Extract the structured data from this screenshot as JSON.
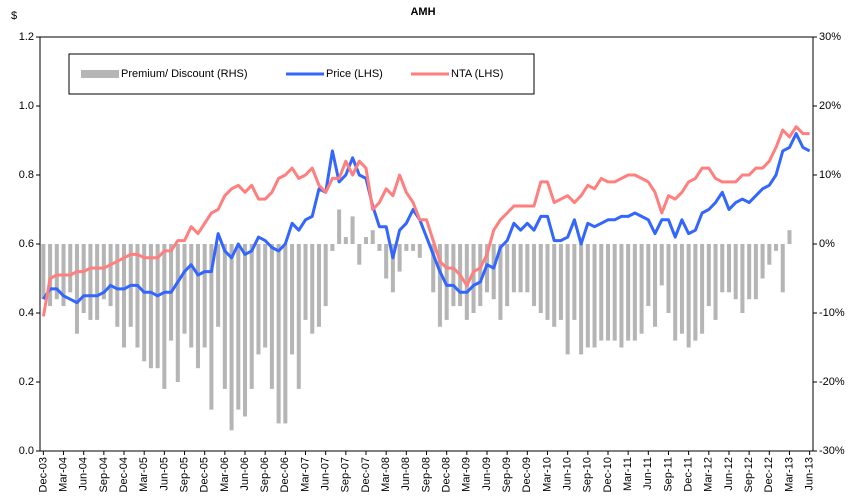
{
  "chart_data": {
    "type": "combo",
    "title": "AMH",
    "y_label": "$",
    "legend": "upper left",
    "grid": false,
    "categories": [
      "Dec-03",
      null,
      null,
      "Mar-04",
      null,
      null,
      "Jun-04",
      null,
      null,
      "Sep-04",
      null,
      null,
      "Dec-04",
      null,
      null,
      "Mar-05",
      null,
      null,
      "Jun-05",
      null,
      null,
      "Sep-05",
      null,
      null,
      "Dec-05",
      null,
      null,
      "Mar-06",
      null,
      null,
      "Jun-06",
      null,
      null,
      "Sep-06",
      null,
      null,
      "Dec-06",
      null,
      null,
      "Mar-07",
      null,
      null,
      "Jun-07",
      null,
      null,
      "Sep-07",
      null,
      null,
      "Dec-07",
      null,
      null,
      "Mar-08",
      null,
      null,
      "Jun-08",
      null,
      null,
      "Sep-08",
      null,
      null,
      "Dec-08",
      null,
      null,
      "Mar-09",
      null,
      null,
      "Jun-09",
      null,
      null,
      "Sep-09",
      null,
      null,
      "Dec-09",
      null,
      null,
      "Mar-10",
      null,
      null,
      "Jun-10",
      null,
      null,
      "Sep-10",
      null,
      null,
      "Dec-10",
      null,
      null,
      "Mar-11",
      null,
      null,
      "Jun-11",
      null,
      null,
      "Sep-11",
      null,
      null,
      "Dec-11",
      null,
      null,
      "Mar-12",
      null,
      null,
      "Jun-12",
      null,
      null,
      "Sep-12",
      null,
      null,
      "Dec-12",
      null,
      null,
      "Mar-13",
      null,
      null,
      "Jun-13"
    ],
    "series": [
      {
        "name": "Premium/ Discount (RHS)",
        "type": "bar",
        "axis": "y2",
        "color": "#b5b5b5",
        "values": [
          -8,
          -9,
          -8,
          -9,
          -7,
          -13,
          -10,
          -11,
          -11,
          -8,
          -9,
          -12,
          -15,
          -12,
          -15,
          -17,
          -18,
          -18,
          -21,
          -14,
          -20,
          -13,
          -15,
          -18,
          -15,
          -24,
          -12,
          -21,
          -27,
          -24,
          -25,
          -21,
          -16,
          -15,
          -21,
          -26,
          -26,
          -16,
          -21,
          -11,
          -13,
          -12,
          -9,
          -1,
          5,
          1,
          4,
          -3,
          1,
          2,
          -1,
          -5,
          -7,
          -4,
          -1,
          -1,
          -2,
          0,
          -7,
          -12,
          -11,
          -9,
          -9,
          -11,
          -10,
          -9,
          -7,
          -8,
          -11,
          -9,
          -7,
          -7,
          -7,
          -9,
          -10,
          -11,
          -12,
          -11,
          -16,
          -11,
          -16,
          -15,
          -15,
          -14,
          -14,
          -14,
          -15,
          -14,
          -14,
          -13,
          -9,
          -12,
          -6,
          -10,
          -14,
          -13,
          -15,
          -14,
          -13,
          -9,
          -11,
          -7,
          -7,
          -8,
          -10,
          -8,
          -8,
          -5,
          -3,
          -1,
          -7,
          2,
          0,
          0,
          0
        ]
      },
      {
        "name": "Price (LHS)",
        "type": "line",
        "color": "#3366ff",
        "values": [
          0.44,
          0.47,
          0.47,
          0.45,
          0.44,
          0.43,
          0.45,
          0.45,
          0.45,
          0.46,
          0.48,
          0.47,
          0.47,
          0.48,
          0.48,
          0.46,
          0.46,
          0.45,
          0.46,
          0.46,
          0.49,
          0.52,
          0.54,
          0.51,
          0.52,
          0.52,
          0.63,
          0.58,
          0.56,
          0.6,
          0.57,
          0.58,
          0.62,
          0.61,
          0.59,
          0.58,
          0.6,
          0.66,
          0.64,
          0.67,
          0.68,
          0.76,
          0.75,
          0.87,
          0.78,
          0.8,
          0.85,
          0.8,
          0.79,
          0.71,
          0.65,
          0.65,
          0.56,
          0.64,
          0.66,
          0.7,
          0.67,
          0.62,
          0.57,
          0.52,
          0.48,
          0.48,
          0.46,
          0.46,
          0.48,
          0.49,
          0.54,
          0.53,
          0.59,
          0.61,
          0.66,
          0.64,
          0.66,
          0.64,
          0.68,
          0.68,
          0.61,
          0.61,
          0.62,
          0.67,
          0.6,
          0.66,
          0.65,
          0.66,
          0.67,
          0.67,
          0.68,
          0.68,
          0.69,
          0.68,
          0.67,
          0.63,
          0.67,
          0.67,
          0.62,
          0.67,
          0.63,
          0.64,
          0.69,
          0.7,
          0.72,
          0.75,
          0.7,
          0.72,
          0.73,
          0.72,
          0.74,
          0.76,
          0.77,
          0.8,
          0.87,
          0.88,
          0.92,
          0.88,
          0.87
        ]
      },
      {
        "name": "NTA (LHS)",
        "type": "line",
        "color": "#ff7f7f",
        "values": [
          0.39,
          0.5,
          0.51,
          0.51,
          0.51,
          0.52,
          0.52,
          0.53,
          0.53,
          0.53,
          0.54,
          0.55,
          0.56,
          0.57,
          0.57,
          0.56,
          0.56,
          0.56,
          0.58,
          0.58,
          0.61,
          0.61,
          0.65,
          0.63,
          0.66,
          0.69,
          0.7,
          0.74,
          0.76,
          0.77,
          0.75,
          0.77,
          0.73,
          0.73,
          0.75,
          0.79,
          0.8,
          0.82,
          0.79,
          0.8,
          0.82,
          0.77,
          0.75,
          0.79,
          0.79,
          0.84,
          0.8,
          0.84,
          0.82,
          0.7,
          0.72,
          0.76,
          0.74,
          0.8,
          0.75,
          0.72,
          0.67,
          0.67,
          0.61,
          0.55,
          0.53,
          0.53,
          0.51,
          0.48,
          0.52,
          0.53,
          0.57,
          0.64,
          0.67,
          0.69,
          0.71,
          0.71,
          0.71,
          0.71,
          0.78,
          0.78,
          0.72,
          0.73,
          0.74,
          0.72,
          0.74,
          0.77,
          0.76,
          0.79,
          0.78,
          0.78,
          0.79,
          0.8,
          0.8,
          0.79,
          0.78,
          0.75,
          0.69,
          0.74,
          0.73,
          0.75,
          0.78,
          0.79,
          0.82,
          0.82,
          0.79,
          0.78,
          0.78,
          0.78,
          0.8,
          0.8,
          0.82,
          0.82,
          0.84,
          0.88,
          0.93,
          0.91,
          0.94,
          0.92,
          0.92
        ]
      }
    ],
    "ylim": [
      0,
      1.2
    ],
    "yticks": [
      {
        "value": 0,
        "label": "0.0"
      },
      0.2,
      0.4,
      0.6,
      0.8,
      {
        "value": 1,
        "label": "1.0"
      },
      1.2
    ],
    "y2lim": [
      -30,
      30
    ],
    "y2ticks": [
      {
        "value": -30,
        "label": "-30%"
      },
      {
        "value": -20,
        "label": "-20%"
      },
      {
        "value": -10,
        "label": "-10%"
      },
      {
        "value": 0,
        "label": "0%"
      },
      {
        "value": 10,
        "label": "10%"
      },
      {
        "value": 20,
        "label": "20%"
      },
      {
        "value": 30,
        "label": "30%"
      }
    ]
  }
}
